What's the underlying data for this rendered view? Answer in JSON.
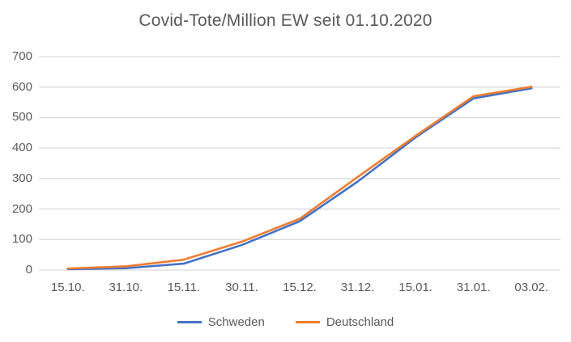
{
  "title": "Covid-Tote/Million EW seit 01.10.2020",
  "colors": {
    "schweden": "#4472C4",
    "deutschland": "#ED7D31",
    "gridline": "#D9D9D9",
    "text": "#595959"
  },
  "legend": {
    "items": [
      {
        "label": "Schweden",
        "color": "#4472C4"
      },
      {
        "label": "Deutschland",
        "color": "#ED7D31"
      }
    ]
  },
  "chart_data": {
    "type": "line",
    "title": "Covid-Tote/Million EW seit 01.10.2020",
    "categories": [
      "15.10.",
      "31.10.",
      "15.11.",
      "30.11.",
      "15.12.",
      "31.12.",
      "15.01.",
      "31.01.",
      "03.02."
    ],
    "series": [
      {
        "name": "Schweden",
        "color": "#4472C4",
        "values": [
          3,
          6,
          21,
          82,
          160,
          290,
          435,
          563,
          596
        ]
      },
      {
        "name": "Deutschland",
        "color": "#ED7D31",
        "values": [
          5,
          12,
          34,
          93,
          168,
          305,
          440,
          570,
          601
        ]
      }
    ],
    "xlabel": "",
    "ylabel": "",
    "ylim": [
      0,
      700
    ],
    "y_ticks": [
      0,
      100,
      200,
      300,
      400,
      500,
      600,
      700
    ],
    "grid": "horizontal-only",
    "legend_position": "bottom"
  }
}
